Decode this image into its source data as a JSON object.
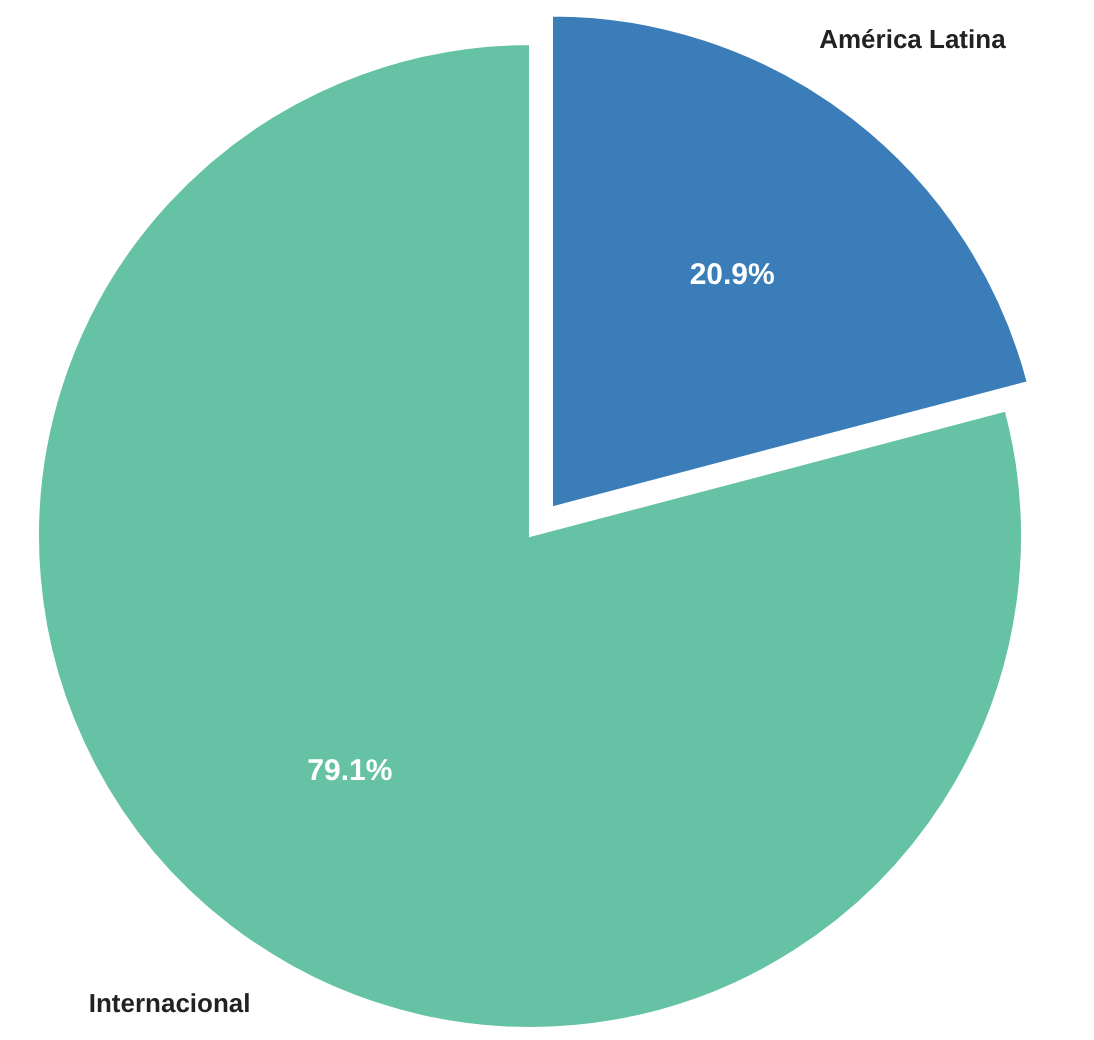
{
  "chart_data": {
    "type": "pie",
    "categories": [
      "América Latina",
      "Internacional"
    ],
    "values": [
      20.9,
      79.1
    ],
    "colors": [
      "#3a7db8",
      "#66c2a5"
    ],
    "value_labels": [
      "20.9%",
      "79.1%"
    ]
  }
}
